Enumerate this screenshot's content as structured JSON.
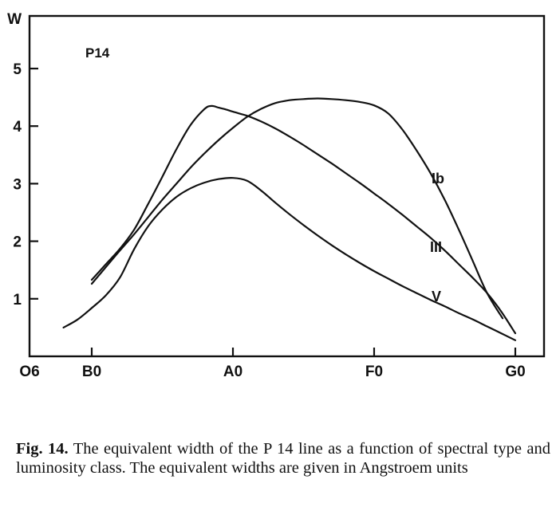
{
  "chart_data": {
    "type": "line",
    "ylabel": "W",
    "panel_label": "P14",
    "x_ticks": [
      "O6",
      "B0",
      "A0",
      "F0",
      "G0"
    ],
    "y_ticks": [
      1,
      2,
      3,
      4,
      5
    ],
    "xlim": [
      -10,
      30
    ],
    "ylim": [
      0,
      5.8
    ],
    "series": [
      {
        "name": "Ib",
        "x": [
          0,
          1,
          2,
          3,
          4,
          5,
          6,
          7,
          8,
          9,
          10,
          11,
          12,
          13,
          14,
          15,
          16,
          17,
          18,
          19,
          20,
          21,
          22,
          23,
          24,
          25,
          26,
          27,
          28,
          29.1
        ],
        "y": [
          1.26,
          1.55,
          1.84,
          2.12,
          2.42,
          2.72,
          3.0,
          3.28,
          3.53,
          3.76,
          3.97,
          4.16,
          4.3,
          4.4,
          4.45,
          4.47,
          4.48,
          4.47,
          4.45,
          4.42,
          4.36,
          4.22,
          3.94,
          3.58,
          3.18,
          2.72,
          2.2,
          1.65,
          1.1,
          0.66
        ]
      },
      {
        "name": "III",
        "x": [
          0,
          1,
          2,
          3,
          4,
          5,
          6,
          7,
          8,
          8.5,
          9,
          9.5,
          10,
          11,
          12,
          13,
          14,
          15,
          16,
          17,
          18,
          19,
          20,
          21,
          22,
          23,
          24,
          25,
          26,
          27,
          28,
          29,
          30
        ],
        "y": [
          1.33,
          1.6,
          1.87,
          2.2,
          2.65,
          3.12,
          3.6,
          4.02,
          4.3,
          4.35,
          4.32,
          4.29,
          4.25,
          4.18,
          4.08,
          3.96,
          3.82,
          3.67,
          3.51,
          3.35,
          3.18,
          3.01,
          2.83,
          2.65,
          2.46,
          2.26,
          2.06,
          1.84,
          1.6,
          1.36,
          1.1,
          0.78,
          0.4
        ]
      },
      {
        "name": "V",
        "x": [
          -2,
          -1,
          0,
          1,
          2,
          3,
          4,
          5,
          6,
          7,
          8,
          9,
          10,
          11,
          12,
          13,
          14,
          15,
          16,
          17,
          18,
          19,
          20,
          21,
          22,
          23,
          24,
          25,
          26,
          27,
          28,
          29,
          30
        ],
        "y": [
          0.5,
          0.64,
          0.84,
          1.06,
          1.37,
          1.86,
          2.26,
          2.55,
          2.77,
          2.92,
          3.02,
          3.08,
          3.1,
          3.05,
          2.88,
          2.67,
          2.47,
          2.28,
          2.1,
          1.93,
          1.77,
          1.62,
          1.48,
          1.35,
          1.22,
          1.1,
          0.98,
          0.87,
          0.75,
          0.64,
          0.52,
          0.4,
          0.28
        ]
      }
    ]
  },
  "caption": {
    "label": "Fig. 14.",
    "text": " The equivalent width of the P 14 line as a function of spectral type and luminosity class. The equivalent widths are given in Angstroem units"
  }
}
